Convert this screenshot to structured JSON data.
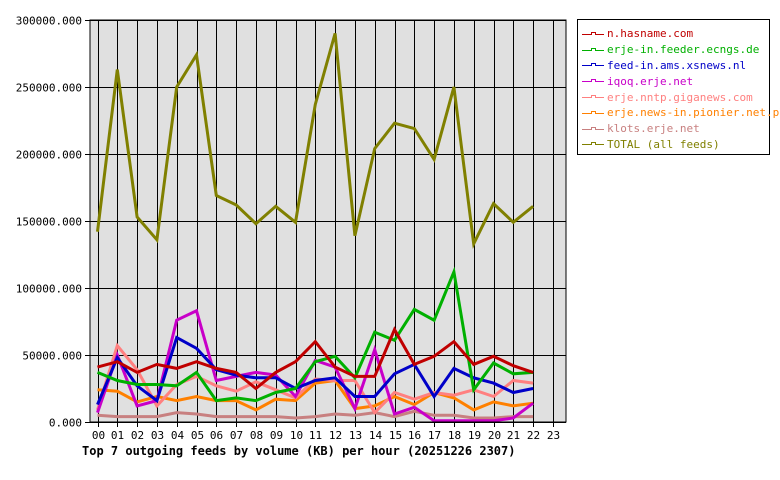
{
  "chart_data": {
    "type": "line",
    "title": "Top 7 outgoing feeds by volume (KB) per hour (20251226 2307)",
    "xlabel": "",
    "ylabel": "",
    "ylim": [
      0,
      300000
    ],
    "grid": true,
    "legend_position": "right",
    "y_ticks": [
      "0.000",
      "50000.000",
      "100000.000",
      "150000.000",
      "200000.000",
      "250000.000",
      "300000.000"
    ],
    "x": [
      "00",
      "01",
      "02",
      "03",
      "04",
      "05",
      "06",
      "07",
      "08",
      "09",
      "10",
      "11",
      "12",
      "13",
      "14",
      "15",
      "16",
      "17",
      "18",
      "19",
      "20",
      "21",
      "22",
      "23"
    ],
    "series": [
      {
        "name": "n.hasname.com",
        "color": "#c00000",
        "values": [
          41000,
          45000,
          37000,
          43000,
          40000,
          45000,
          40000,
          37000,
          25000,
          37000,
          45000,
          60000,
          41000,
          34000,
          34000,
          69000,
          43000,
          49000,
          60000,
          43000,
          49000,
          42000,
          37000
        ]
      },
      {
        "name": "erje-in.feeder.ecngs.de",
        "color": "#00b000",
        "values": [
          37000,
          31000,
          28000,
          28000,
          27000,
          37000,
          16000,
          18000,
          16000,
          22000,
          25000,
          45000,
          49000,
          33000,
          67000,
          61000,
          84000,
          76000,
          112000,
          24000,
          44000,
          36000,
          37000
        ]
      },
      {
        "name": "feed-in.ams.xsnews.nl",
        "color": "#0000c8",
        "values": [
          13000,
          48000,
          27000,
          16000,
          63000,
          55000,
          39000,
          35000,
          33000,
          33000,
          25000,
          31000,
          33000,
          19000,
          19000,
          36000,
          43000,
          19000,
          40000,
          33000,
          29000,
          22000,
          25000
        ]
      },
      {
        "name": "iqoq.erje.net",
        "color": "#c800c8",
        "values": [
          7000,
          50000,
          12000,
          16000,
          76000,
          83000,
          31000,
          34000,
          37000,
          35000,
          19000,
          46000,
          41000,
          10000,
          54000,
          6000,
          11000,
          1000,
          1000,
          1000,
          1000,
          3000,
          14000
        ]
      },
      {
        "name": "erje.nntp.giganews.com",
        "color": "#ff8080",
        "values": [
          9000,
          57000,
          39000,
          12000,
          28000,
          34000,
          27000,
          23000,
          30000,
          24000,
          18000,
          32000,
          31000,
          31000,
          7000,
          22000,
          17000,
          22000,
          20000,
          24000,
          19000,
          31000,
          29000
        ]
      },
      {
        "name": "erje.news-in.pionier.net.pl",
        "color": "#ff8000",
        "values": [
          24000,
          23000,
          15000,
          19000,
          16000,
          19000,
          16000,
          16000,
          9000,
          17000,
          16000,
          29000,
          31000,
          10000,
          12000,
          19000,
          13000,
          22000,
          18000,
          9000,
          15000,
          12000,
          14000
        ]
      },
      {
        "name": "klots.erje.net",
        "color": "#c88080",
        "values": [
          5000,
          4000,
          4000,
          4000,
          7000,
          6000,
          4000,
          4000,
          4000,
          4000,
          3000,
          4000,
          6000,
          5000,
          7000,
          4000,
          8000,
          5000,
          5000,
          3000,
          3000,
          4000,
          4000
        ]
      },
      {
        "name": "TOTAL (all feeds)",
        "color": "#808000",
        "values": [
          142000,
          263000,
          153000,
          136000,
          250000,
          274000,
          169000,
          162000,
          148000,
          161000,
          149000,
          237000,
          290000,
          139000,
          204000,
          223000,
          219000,
          196000,
          250000,
          133000,
          163000,
          149000,
          161000
        ]
      }
    ]
  },
  "caption": "Top 7 outgoing feeds by volume (KB) per hour (20251226 2307)",
  "legend": {
    "items": [
      {
        "label": "n.hasname.com",
        "color": "#c00000"
      },
      {
        "label": "erje-in.feeder.ecngs.de",
        "color": "#00b000"
      },
      {
        "label": "feed-in.ams.xsnews.nl",
        "color": "#0000c8"
      },
      {
        "label": "iqoq.erje.net",
        "color": "#c800c8"
      },
      {
        "label": "erje.nntp.giganews.com",
        "color": "#ff8080"
      },
      {
        "label": "erje.news-in.pionier.net.pl",
        "color": "#ff8000"
      },
      {
        "label": "klots.erje.net",
        "color": "#c88080"
      },
      {
        "label": "TOTAL (all feeds)",
        "color": "#808000"
      }
    ]
  },
  "colors": {
    "plot_background": "#e0e0e0",
    "grid": "#000000",
    "axis": "#000000"
  }
}
